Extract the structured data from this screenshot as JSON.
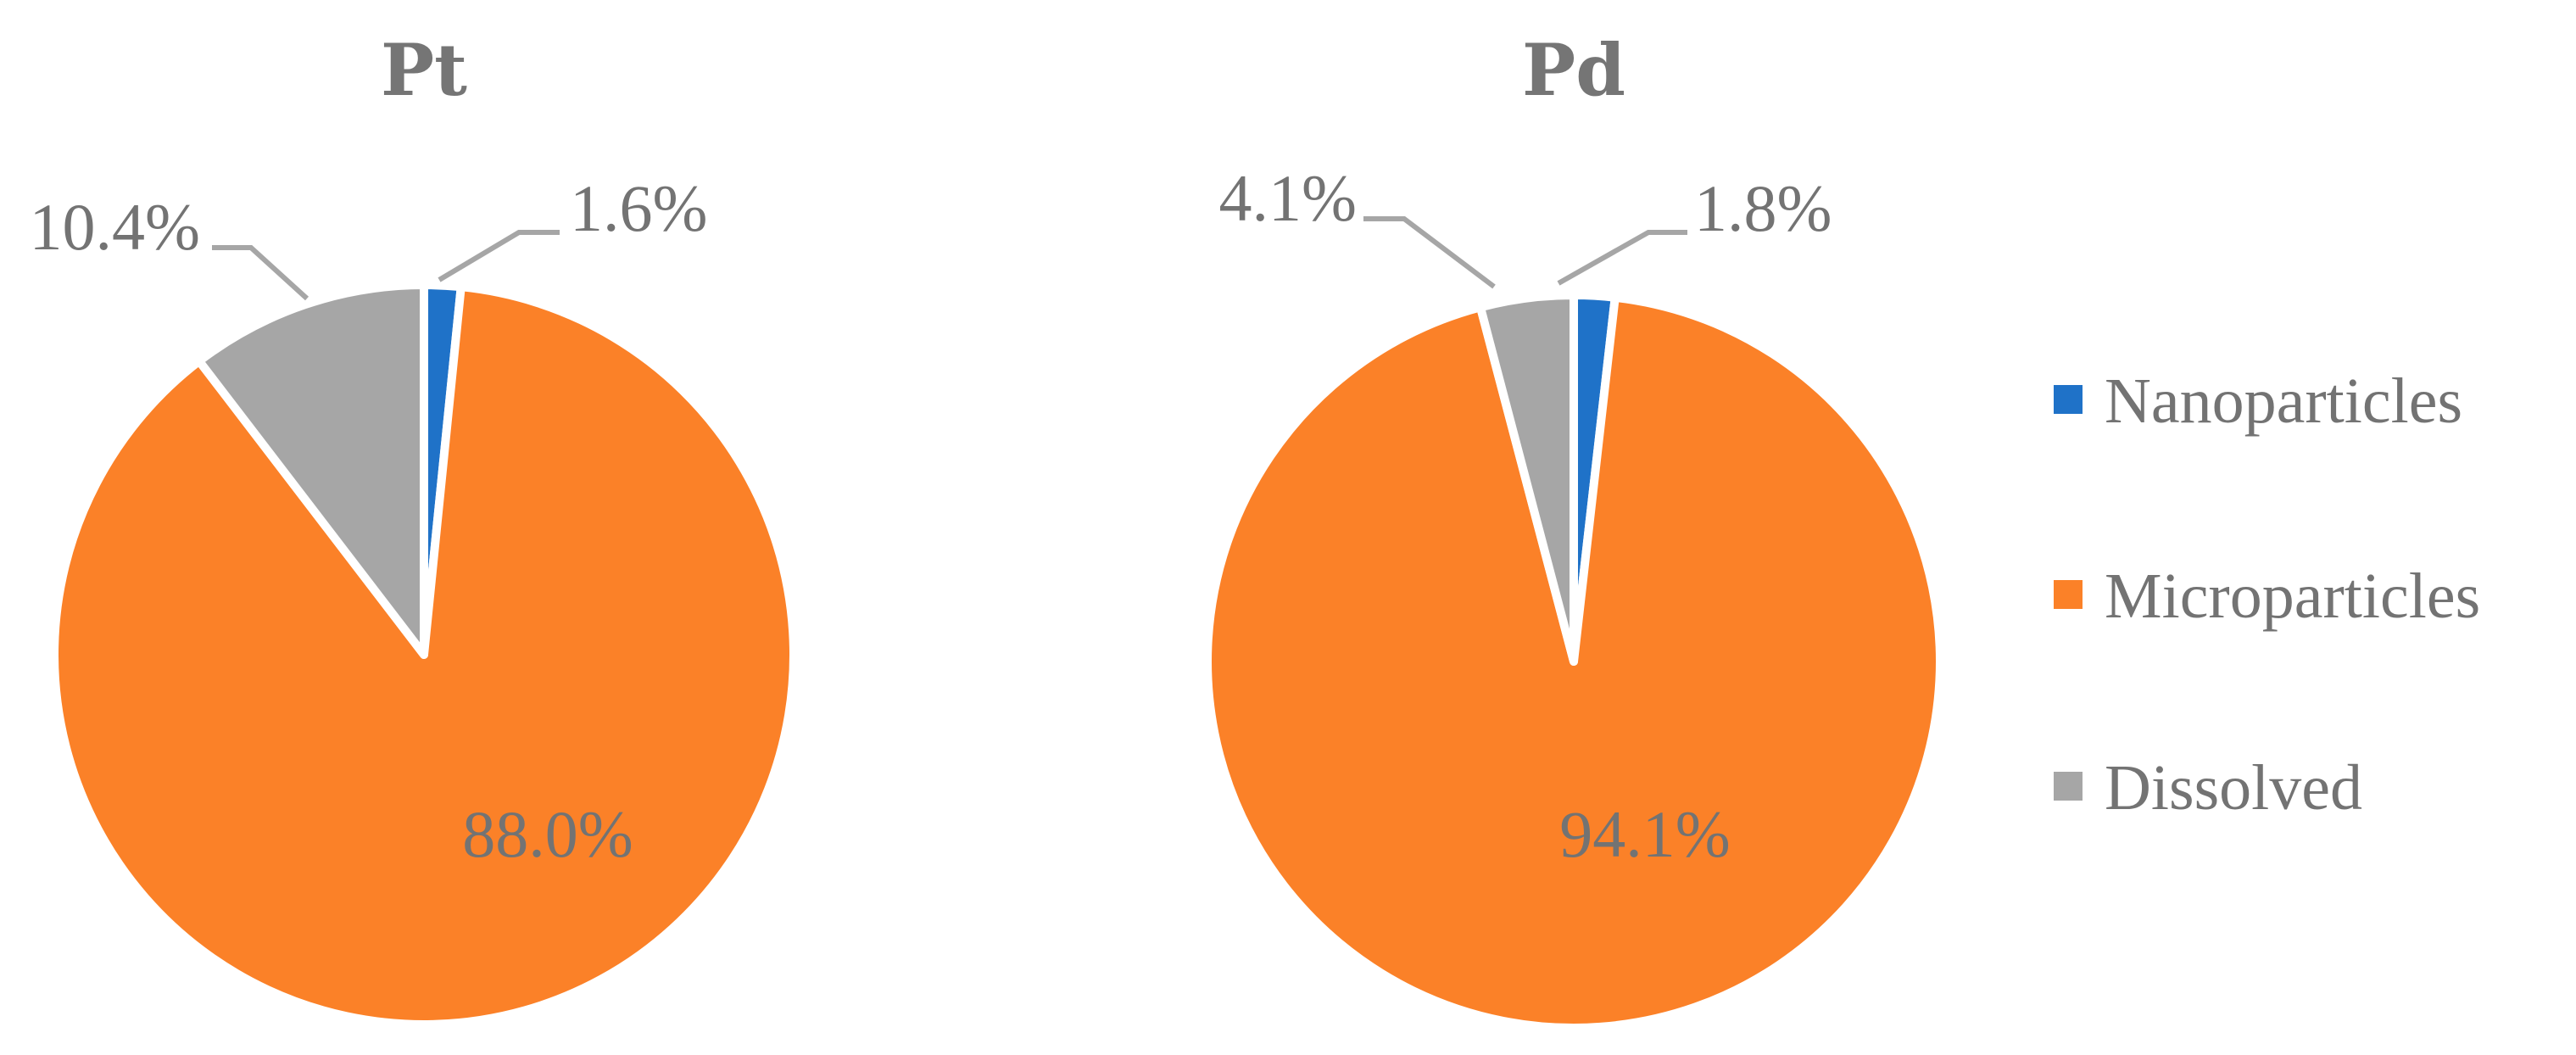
{
  "chart_data": [
    {
      "type": "pie",
      "title": "Pt",
      "categories": [
        "Nanoparticles",
        "Microparticles",
        "Dissolved"
      ],
      "values": [
        1.6,
        88.0,
        10.4
      ],
      "labels": [
        "1.6%",
        "88.0%",
        "10.4%"
      ],
      "colors": [
        "#1f72c8",
        "#fb8128",
        "#a6a6a6"
      ]
    },
    {
      "type": "pie",
      "title": "Pd",
      "categories": [
        "Nanoparticles",
        "Microparticles",
        "Dissolved"
      ],
      "values": [
        1.8,
        94.1,
        4.1
      ],
      "labels": [
        "1.8%",
        "94.1%",
        "4.1%"
      ],
      "colors": [
        "#1f72c8",
        "#fb8128",
        "#a6a6a6"
      ]
    }
  ],
  "legend": {
    "placement": "right",
    "items": [
      {
        "label": "Nanoparticles",
        "color": "#1f72c8"
      },
      {
        "label": "Microparticles",
        "color": "#fb8128"
      },
      {
        "label": "Dissolved",
        "color": "#a6a6a6"
      }
    ]
  }
}
